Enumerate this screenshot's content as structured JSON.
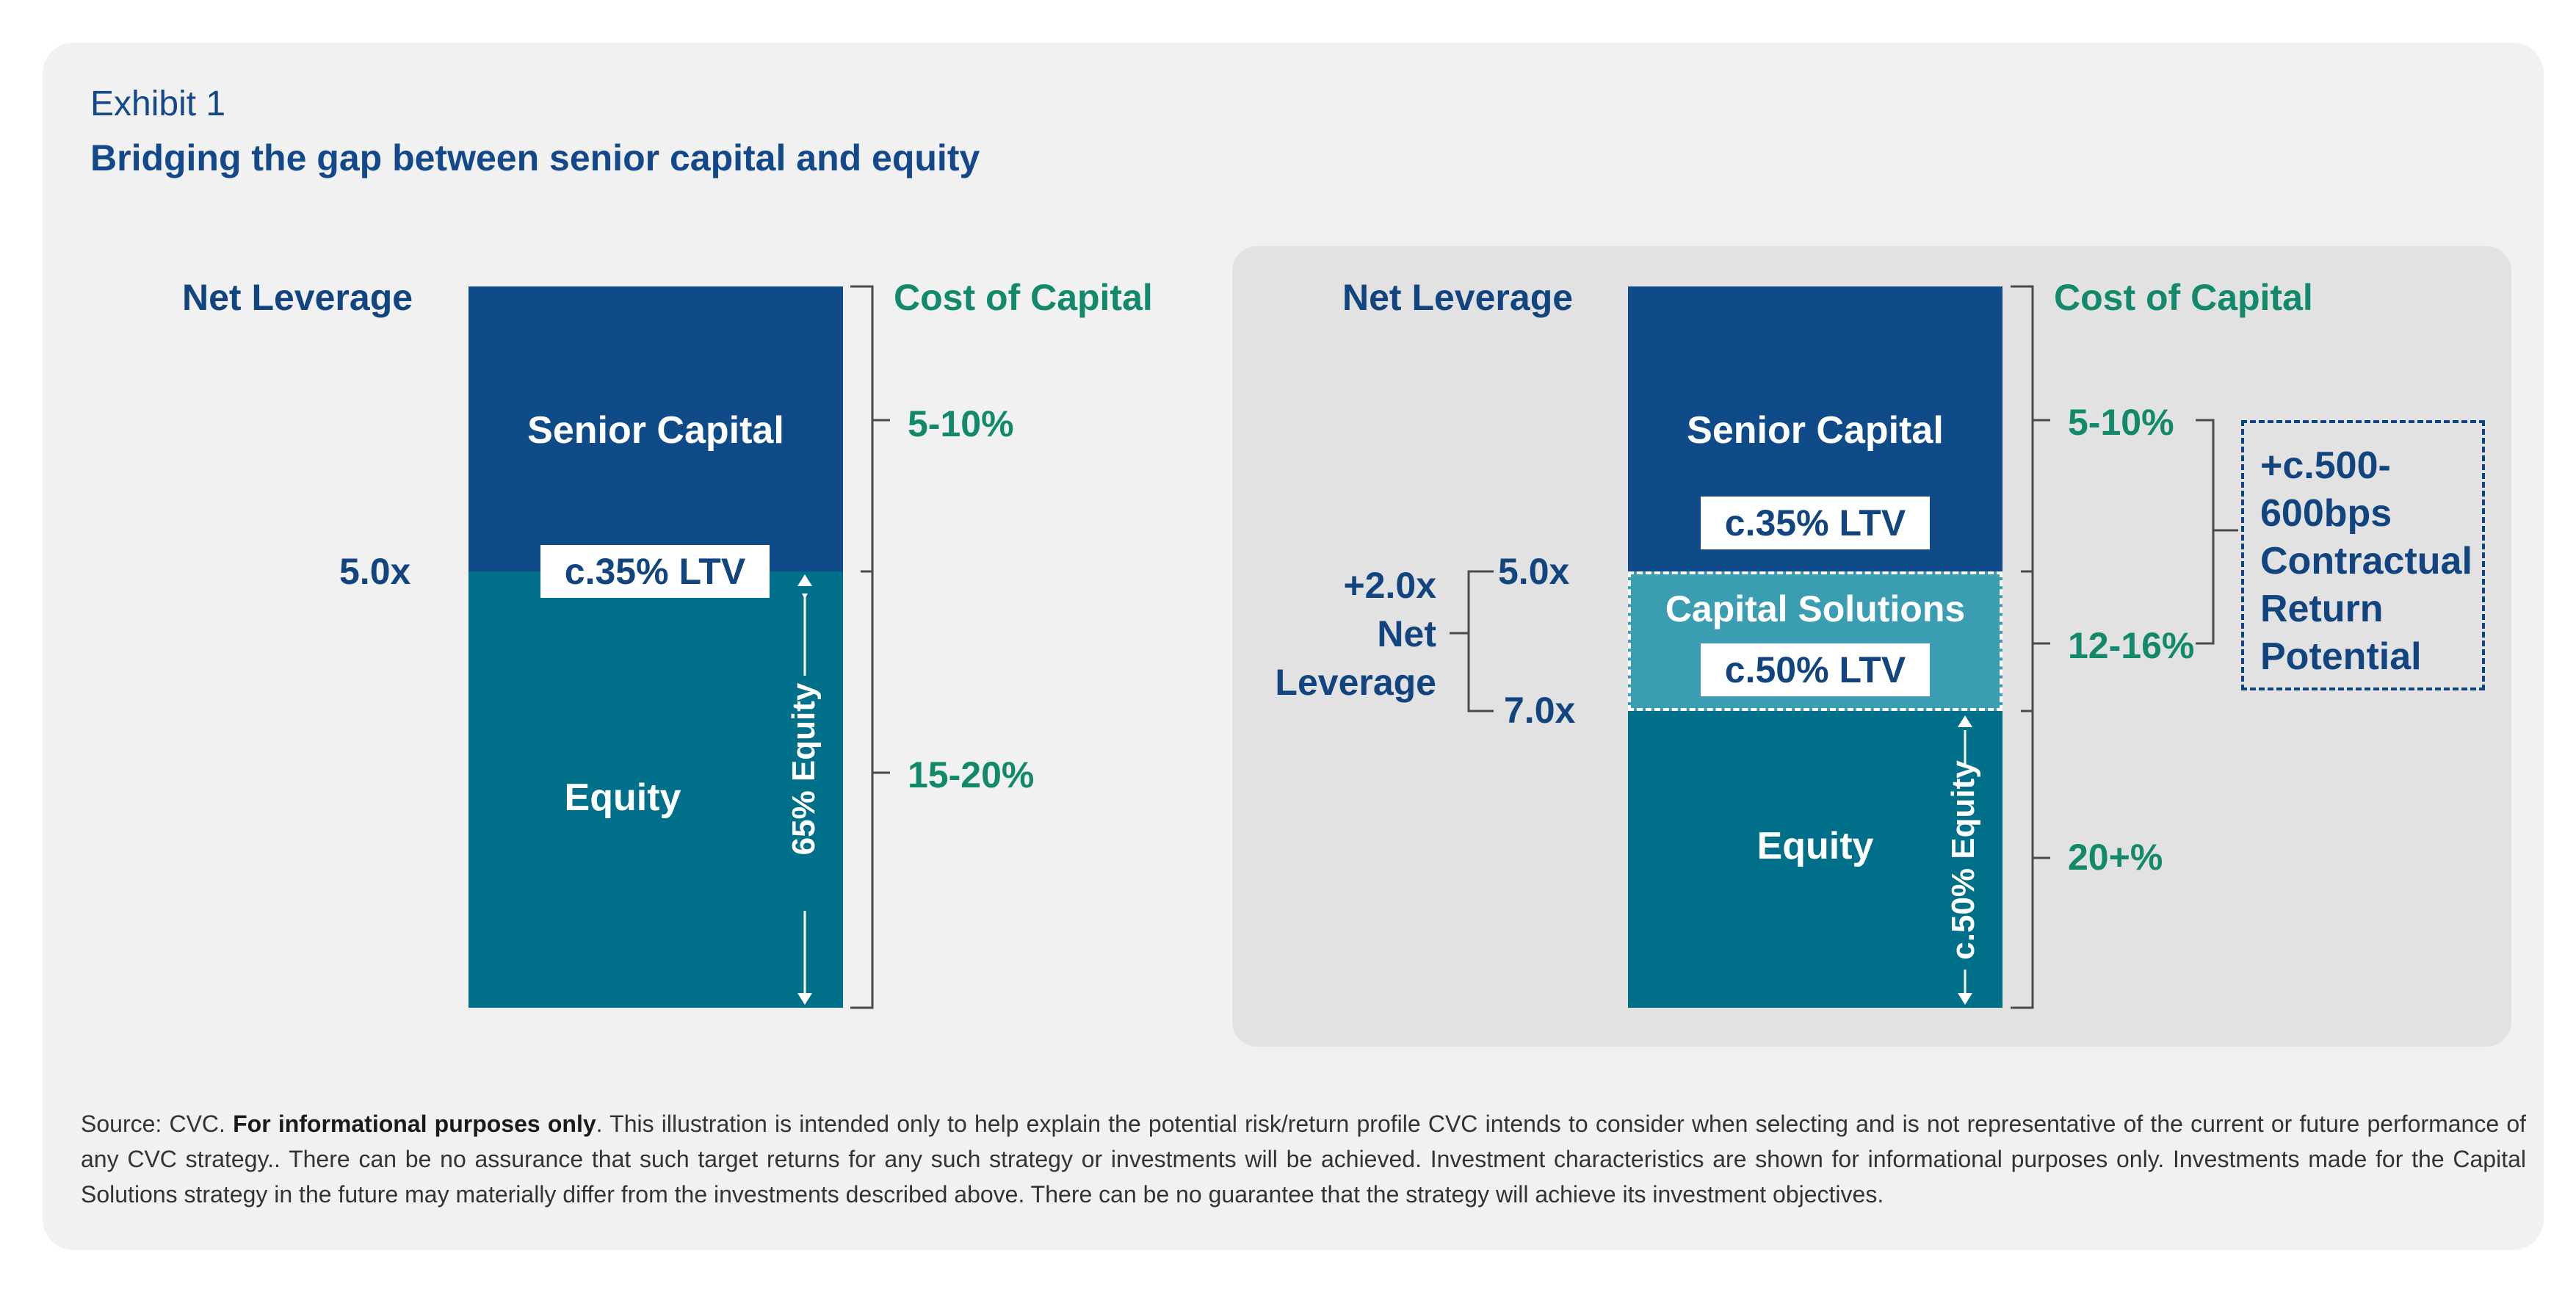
{
  "header": {
    "exhibit": "Exhibit 1",
    "title": "Bridging the gap between senior capital and equity"
  },
  "left_chart": {
    "net_leverage_label": "Net Leverage",
    "cost_of_capital_label": "Cost of Capital",
    "senior_label": "Senior Capital",
    "equity_label": "Equity",
    "ltv_badge": "c.35% LTV",
    "leverage_value": "5.0x",
    "equity_share": "65% Equity",
    "senior_cost": "5-10%",
    "equity_cost": "15-20%"
  },
  "right_chart": {
    "net_leverage_label": "Net Leverage",
    "cost_of_capital_label": "Cost of Capital",
    "senior_label": "Senior Capital",
    "senior_ltv_badge": "c.35% LTV",
    "capital_solutions_label": "Capital Solutions",
    "capital_solutions_ltv_badge": "c.50% LTV",
    "equity_label": "Equity",
    "equity_share": "c.50% Equity",
    "leverage_top": "5.0x",
    "leverage_bottom": "7.0x",
    "added_leverage_lines": [
      "+2.0x",
      "Net",
      "Leverage"
    ],
    "senior_cost": "5-10%",
    "capital_solutions_cost": "12-16%",
    "equity_cost": "20+%",
    "contractual_return_lines": [
      "+c.500-",
      "600bps",
      "Contractual",
      "Return",
      "Potential"
    ]
  },
  "footnote": {
    "source_prefix": "Source: CVC. ",
    "source_bold": "For informational purposes only",
    "source_text": ". This illustration is intended only to help explain the potential risk/return profile CVC intends to consider when selecting and is not representative of the current or future performance of any CVC strategy.. There can be no assurance that such target returns for any such strategy or investments will be achieved. Investment characteristics are shown for informational purposes only. Investments made for the Capital Solutions strategy in the future may materially differ from the investments described above. There can be no guarantee that the strategy will achieve its investment objectives."
  },
  "colors": {
    "senior": "#0f4b89",
    "equity": "#00708a",
    "capital_solutions": "#3a9db2",
    "navy_text": "#12457f",
    "green_text": "#11896a",
    "panel": "#e2e2e2",
    "card": "#f1f1f1"
  }
}
